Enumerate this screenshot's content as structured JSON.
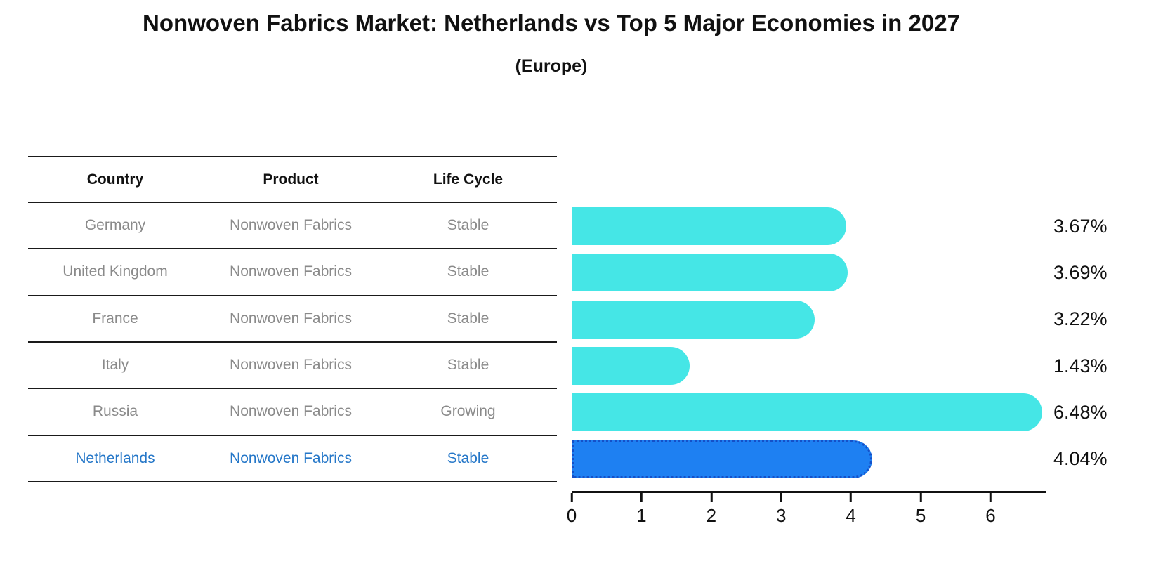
{
  "header": {
    "title": "Nonwoven Fabrics Market: Netherlands vs Top 5 Major Economies in 2027",
    "subtitle": "(Europe)"
  },
  "table": {
    "columns": [
      "Country",
      "Product",
      "Life Cycle"
    ],
    "rows": [
      {
        "country": "Germany",
        "product": "Nonwoven Fabrics",
        "life_cycle": "Stable",
        "highlight": false
      },
      {
        "country": "United Kingdom",
        "product": "Nonwoven Fabrics",
        "life_cycle": "Stable",
        "highlight": false
      },
      {
        "country": "France",
        "product": "Nonwoven Fabrics",
        "life_cycle": "Stable",
        "highlight": false
      },
      {
        "country": "Italy",
        "product": "Nonwoven Fabrics",
        "life_cycle": "Stable",
        "highlight": false
      },
      {
        "country": "Russia",
        "product": "Nonwoven Fabrics",
        "life_cycle": "Growing",
        "highlight": false
      },
      {
        "country": "Netherlands",
        "product": "Nonwoven Fabrics",
        "life_cycle": "Stable",
        "highlight": true
      }
    ]
  },
  "chart_data": {
    "type": "bar",
    "orientation": "horizontal",
    "title": "Nonwoven Fabrics Market: Netherlands vs Top 5 Major Economies in 2027 (Europe)",
    "categories": [
      "Germany",
      "United Kingdom",
      "France",
      "Italy",
      "Russia",
      "Netherlands"
    ],
    "values": [
      3.67,
      3.69,
      3.22,
      1.43,
      6.48,
      4.04
    ],
    "value_labels": [
      "3.67%",
      "3.69%",
      "3.22%",
      "1.43%",
      "6.48%",
      "4.04%"
    ],
    "unit": "percent",
    "xticks": [
      "0",
      "1",
      "2",
      "3",
      "4",
      "5",
      "6"
    ],
    "xlim": [
      0,
      6.8
    ],
    "grid": false,
    "legend": false,
    "highlight_index": 5,
    "bar_color": "#45e6e6",
    "highlight_bar_color": "#1e80f2",
    "highlight_border_color": "#1550c8",
    "highlight_text_color": "#2577c8",
    "row_text_color": "#8a8a8a"
  }
}
